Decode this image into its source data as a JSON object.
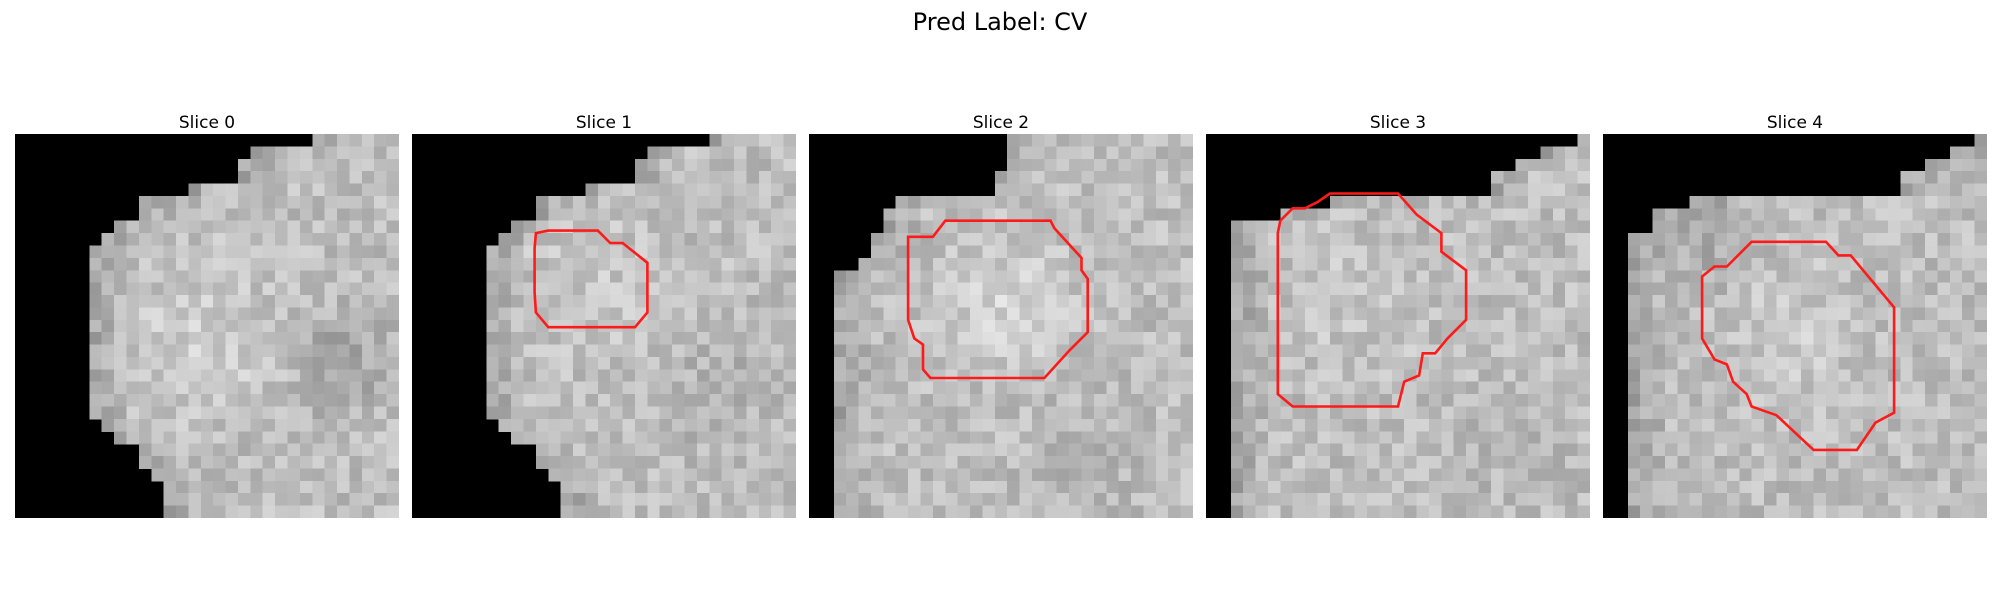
{
  "figure": {
    "title": "Pred Label: CV"
  },
  "colors": {
    "mask_background": "#000000",
    "contour": "#ff1a1a"
  },
  "panels": [
    {
      "title": "Slice 0",
      "has_contour": false
    },
    {
      "title": "Slice 1",
      "has_contour": true
    },
    {
      "title": "Slice 2",
      "has_contour": true
    },
    {
      "title": "Slice 3",
      "has_contour": true
    },
    {
      "title": "Slice 4",
      "has_contour": true
    }
  ]
}
